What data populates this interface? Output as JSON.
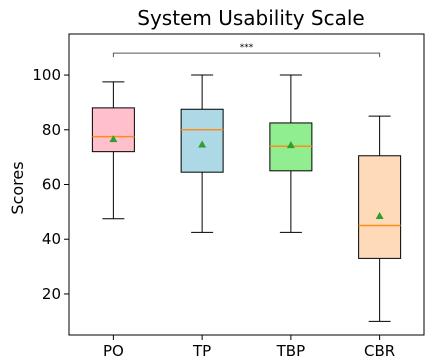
{
  "chart_data": {
    "type": "box",
    "title": "System Usability Scale",
    "xlabel": "",
    "ylabel": "Scores",
    "ylim": [
      5,
      115
    ],
    "yticks": [
      20,
      40,
      60,
      80,
      100
    ],
    "categories": [
      "PO",
      "TP",
      "TBP",
      "CBR"
    ],
    "boxes": [
      {
        "name": "PO",
        "whisker_low": 47.5,
        "q1": 72.0,
        "median": 77.5,
        "q3": 88.0,
        "whisker_high": 97.5,
        "mean": 76.6,
        "color": "#ffc0cb"
      },
      {
        "name": "TP",
        "whisker_low": 42.5,
        "q1": 64.5,
        "median": 80.0,
        "q3": 87.5,
        "whisker_high": 100.0,
        "mean": 74.6,
        "color": "#add8e6"
      },
      {
        "name": "TBP",
        "whisker_low": 42.5,
        "q1": 65.0,
        "median": 74.0,
        "q3": 82.5,
        "whisker_high": 100.0,
        "mean": 74.4,
        "color": "#90ee90"
      },
      {
        "name": "CBR",
        "whisker_low": 10.0,
        "q1": 33.0,
        "median": 45.0,
        "q3": 70.5,
        "whisker_high": 85.0,
        "mean": 48.5,
        "color": "#ffdab9"
      }
    ],
    "significance": {
      "from": "PO",
      "to": "CBR",
      "y": 108,
      "label": "***"
    },
    "grid": false,
    "colors": {
      "median": "#ff8c1a",
      "mean": "#2ca02c",
      "outline": "#000000"
    }
  }
}
